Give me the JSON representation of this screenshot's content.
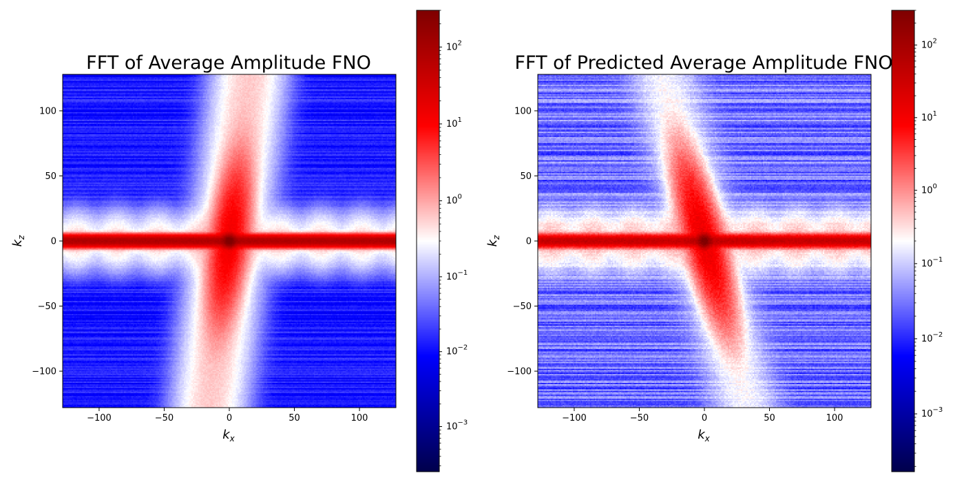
{
  "chart_data": [
    {
      "type": "heatmap",
      "title": "FFT of Average Amplitude FNO",
      "xlabel": "k_x",
      "ylabel": "k_z",
      "xlim": [
        -128,
        128
      ],
      "ylim": [
        -128,
        128
      ],
      "xticks": [
        "−100",
        "−50",
        "0",
        "50",
        "100"
      ],
      "xtick_values": [
        -100,
        -50,
        0,
        50,
        100
      ],
      "yticks": [
        "100",
        "50",
        "0",
        "−50",
        "−100"
      ],
      "ytick_values": [
        100,
        50,
        0,
        -50,
        -100
      ],
      "colormap": "seismic",
      "colorbar": {
        "scale": "log",
        "range": [
          0.00025,
          300
        ],
        "center": 0.3,
        "tick_values": [
          0.001,
          0.01,
          0.1,
          1,
          10,
          100
        ],
        "tick_labels": [
          "10",
          "10",
          "10",
          "10",
          "10",
          "10"
        ],
        "tick_exponents": [
          "−3",
          "−2",
          "−1",
          "0",
          "1",
          "2"
        ]
      },
      "pattern": {
        "background_level": 0.012,
        "horizontal_band_peak": 80,
        "vertical_band_level": 0.6,
        "center_peak": 300,
        "tilt": 0.12,
        "noise": 0.25
      }
    },
    {
      "type": "heatmap",
      "title": "FFT of Predicted Average Amplitude FNO",
      "xlabel": "k_x",
      "ylabel": "k_z",
      "xlim": [
        -128,
        128
      ],
      "ylim": [
        -128,
        128
      ],
      "xticks": [
        "−100",
        "−50",
        "0",
        "50",
        "100"
      ],
      "xtick_values": [
        -100,
        -50,
        0,
        50,
        100
      ],
      "yticks": [
        "100",
        "50",
        "0",
        "−50",
        "−100"
      ],
      "ytick_values": [
        100,
        50,
        0,
        -50,
        -100
      ],
      "colormap": "seismic",
      "colorbar": {
        "scale": "log",
        "range": [
          0.00017,
          300
        ],
        "center": 0.2,
        "tick_values": [
          0.001,
          0.01,
          0.1,
          1,
          10,
          100
        ],
        "tick_labels": [
          "10",
          "10",
          "10",
          "10",
          "10",
          "10"
        ],
        "tick_exponents": [
          "−3",
          "−2",
          "−1",
          "0",
          "1",
          "2"
        ]
      },
      "pattern": {
        "background_level": 0.025,
        "horizontal_band_peak": 40,
        "vertical_band_level": 0.15,
        "center_peak": 300,
        "tilt": -0.25,
        "noise": 0.45
      }
    }
  ]
}
